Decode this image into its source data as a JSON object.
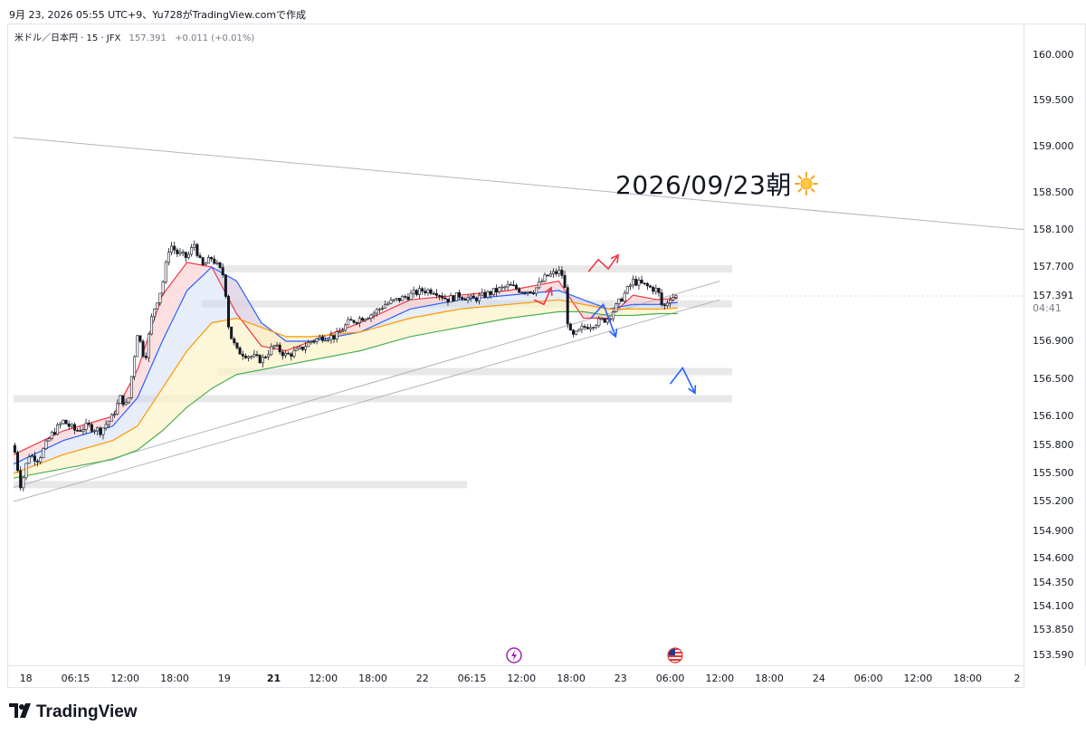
{
  "caption": "9月 23, 2026 05:55 UTC+9、Yu728がTradingView.comで作成",
  "legend": {
    "symbol": "米ドル／日本円 · 15 · JFX",
    "price": "157.391",
    "change": "+0.011 (+0.01%)"
  },
  "annotation": {
    "text": "2026/09/23朝",
    "icon": "sun-icon"
  },
  "last_price": {
    "value": "157.391",
    "countdown": "04:41"
  },
  "brand": {
    "name": "TradingView",
    "icon": "tradingview-logo-icon"
  },
  "events": [
    {
      "icon": "lightning-event-icon",
      "time_index": 20.2
    },
    {
      "icon": "us-flag-event-icon",
      "time_index": 26.7
    }
  ],
  "colors": {
    "bull": "#ffffff",
    "bear": "#131722",
    "red": "#f23645",
    "blue": "#2962ff",
    "green": "#4caf50",
    "orange": "#ff9800",
    "zone": "#e0e0e0"
  },
  "chart_data": {
    "type": "candlestick",
    "symbol": "米ドル／日本円 · 15 · JFX",
    "price_ticks": [
      "160.000",
      "159.500",
      "159.000",
      "158.500",
      "158.100",
      "157.700",
      "157.391",
      "156.900",
      "156.500",
      "156.100",
      "155.800",
      "155.500",
      "155.200",
      "154.900",
      "154.600",
      "154.350",
      "154.100",
      "153.850",
      "153.590"
    ],
    "price_tick_values": [
      160.0,
      159.5,
      159.0,
      158.5,
      158.1,
      157.7,
      157.391,
      156.9,
      156.5,
      156.1,
      155.8,
      155.5,
      155.2,
      154.9,
      154.6,
      154.35,
      154.1,
      153.85,
      153.59
    ],
    "time_ticks": [
      {
        "label": "18",
        "idx": 0.5
      },
      {
        "label": "06:15",
        "idx": 2.5
      },
      {
        "label": "12:00",
        "idx": 4.5
      },
      {
        "label": "18:00",
        "idx": 6.5
      },
      {
        "label": "19",
        "idx": 8.5
      },
      {
        "label": "21",
        "idx": 10.5,
        "bold": true
      },
      {
        "label": "12:00",
        "idx": 12.5
      },
      {
        "label": "18:00",
        "idx": 14.5
      },
      {
        "label": "22",
        "idx": 16.5
      },
      {
        "label": "06:15",
        "idx": 18.5
      },
      {
        "label": "12:00",
        "idx": 20.5
      },
      {
        "label": "18:00",
        "idx": 22.5
      },
      {
        "label": "23",
        "idx": 24.5
      },
      {
        "label": "06:00",
        "idx": 26.5
      },
      {
        "label": "12:00",
        "idx": 28.5
      },
      {
        "label": "18:00",
        "idx": 30.5
      },
      {
        "label": "24",
        "idx": 32.5
      },
      {
        "label": "06:00",
        "idx": 34.5
      },
      {
        "label": "12:00",
        "idx": 36.5
      },
      {
        "label": "18:00",
        "idx": 38.5
      },
      {
        "label": "2",
        "idx": 40.5
      }
    ],
    "close_path": [
      [
        0,
        155.8
      ],
      [
        0.3,
        155.35
      ],
      [
        0.6,
        155.7
      ],
      [
        1,
        155.65
      ],
      [
        1.5,
        155.9
      ],
      [
        2,
        156.05
      ],
      [
        2.5,
        155.95
      ],
      [
        3,
        156.0
      ],
      [
        3.5,
        155.95
      ],
      [
        4,
        156.1
      ],
      [
        4.3,
        156.3
      ],
      [
        4.6,
        156.2
      ],
      [
        5,
        157.0
      ],
      [
        5.3,
        156.7
      ],
      [
        5.6,
        157.2
      ],
      [
        6,
        157.5
      ],
      [
        6.3,
        157.95
      ],
      [
        6.6,
        157.85
      ],
      [
        7,
        157.8
      ],
      [
        7.3,
        157.95
      ],
      [
        7.6,
        157.7
      ],
      [
        8,
        157.8
      ],
      [
        8.5,
        157.6
      ],
      [
        8.7,
        157.0
      ],
      [
        9,
        156.8
      ],
      [
        9.5,
        156.75
      ],
      [
        10,
        156.7
      ],
      [
        10.5,
        156.85
      ],
      [
        11,
        156.75
      ],
      [
        11.5,
        156.8
      ],
      [
        12,
        156.9
      ],
      [
        12.5,
        156.95
      ],
      [
        13,
        156.95
      ],
      [
        13.5,
        157.1
      ],
      [
        14,
        157.15
      ],
      [
        14.5,
        157.2
      ],
      [
        15,
        157.3
      ],
      [
        15.5,
        157.35
      ],
      [
        16,
        157.4
      ],
      [
        16.5,
        157.45
      ],
      [
        17,
        157.45
      ],
      [
        17.5,
        157.35
      ],
      [
        18,
        157.4
      ],
      [
        18.5,
        157.35
      ],
      [
        19,
        157.4
      ],
      [
        19.5,
        157.45
      ],
      [
        20,
        157.5
      ],
      [
        20.5,
        157.45
      ],
      [
        21,
        157.45
      ],
      [
        21.5,
        157.6
      ],
      [
        22,
        157.65
      ],
      [
        22.2,
        157.6
      ],
      [
        22.4,
        157.0
      ],
      [
        22.6,
        156.95
      ],
      [
        23,
        157.05
      ],
      [
        23.5,
        157.1
      ],
      [
        24,
        157.15
      ],
      [
        24.5,
        157.35
      ],
      [
        25,
        157.55
      ],
      [
        25.5,
        157.5
      ],
      [
        26,
        157.45
      ],
      [
        26.2,
        157.25
      ],
      [
        26.5,
        157.38
      ],
      [
        26.8,
        157.39
      ]
    ],
    "series": [
      {
        "name": "",
        "color": "#f23645",
        "values": [
          [
            0,
            155.7
          ],
          [
            2,
            155.95
          ],
          [
            4,
            156.1
          ],
          [
            5,
            156.6
          ],
          [
            6,
            157.4
          ],
          [
            7,
            157.75
          ],
          [
            8,
            157.7
          ],
          [
            9,
            157.2
          ],
          [
            10,
            156.85
          ],
          [
            11,
            156.8
          ],
          [
            12,
            156.9
          ],
          [
            14,
            157.1
          ],
          [
            16,
            157.35
          ],
          [
            18,
            157.4
          ],
          [
            20,
            157.45
          ],
          [
            22,
            157.55
          ],
          [
            23,
            157.15
          ],
          [
            24,
            157.15
          ],
          [
            25,
            157.4
          ],
          [
            26,
            157.35
          ],
          [
            26.8,
            157.37
          ]
        ]
      },
      {
        "name": "",
        "color": "#2962ff",
        "values": [
          [
            0,
            155.6
          ],
          [
            2,
            155.85
          ],
          [
            4,
            156.0
          ],
          [
            5,
            156.3
          ],
          [
            6,
            156.9
          ],
          [
            7,
            157.45
          ],
          [
            8,
            157.7
          ],
          [
            9,
            157.55
          ],
          [
            10,
            157.1
          ],
          [
            11,
            156.9
          ],
          [
            12,
            156.9
          ],
          [
            14,
            157.0
          ],
          [
            16,
            157.25
          ],
          [
            18,
            157.35
          ],
          [
            20,
            157.4
          ],
          [
            22,
            157.45
          ],
          [
            23,
            157.35
          ],
          [
            24,
            157.25
          ],
          [
            25,
            157.3
          ],
          [
            26,
            157.3
          ],
          [
            26.8,
            157.32
          ]
        ]
      },
      {
        "name": "",
        "color": "#ff9800",
        "values": [
          [
            0,
            155.5
          ],
          [
            2,
            155.7
          ],
          [
            4,
            155.85
          ],
          [
            5,
            156.0
          ],
          [
            6,
            156.4
          ],
          [
            7,
            156.8
          ],
          [
            8,
            157.1
          ],
          [
            9,
            157.15
          ],
          [
            10,
            157.05
          ],
          [
            11,
            156.95
          ],
          [
            12,
            156.95
          ],
          [
            14,
            157.0
          ],
          [
            16,
            157.15
          ],
          [
            18,
            157.25
          ],
          [
            20,
            157.3
          ],
          [
            22,
            157.35
          ],
          [
            23,
            157.3
          ],
          [
            24,
            157.25
          ],
          [
            25,
            157.25
          ],
          [
            26,
            157.25
          ],
          [
            26.8,
            157.26
          ]
        ]
      },
      {
        "name": "",
        "color": "#4caf50",
        "values": [
          [
            0,
            155.45
          ],
          [
            2,
            155.55
          ],
          [
            4,
            155.65
          ],
          [
            5,
            155.75
          ],
          [
            6,
            155.95
          ],
          [
            7,
            156.2
          ],
          [
            8,
            156.4
          ],
          [
            9,
            156.55
          ],
          [
            10,
            156.6
          ],
          [
            11,
            156.65
          ],
          [
            12,
            156.7
          ],
          [
            14,
            156.8
          ],
          [
            16,
            156.95
          ],
          [
            18,
            157.05
          ],
          [
            20,
            157.15
          ],
          [
            22,
            157.22
          ],
          [
            23,
            157.22
          ],
          [
            24,
            157.18
          ],
          [
            25,
            157.18
          ],
          [
            26,
            157.2
          ],
          [
            26.8,
            157.2
          ]
        ]
      }
    ],
    "zones": [
      {
        "from": 8.2,
        "to": 29.0,
        "price": 157.68
      },
      {
        "from": 7.6,
        "to": 29.0,
        "price": 157.305
      },
      {
        "from": 8.2,
        "to": 29.0,
        "price": 156.58
      },
      {
        "from": 0,
        "to": 29.0,
        "price": 156.29
      },
      {
        "from": 0,
        "to": 18.3,
        "price": 155.38
      }
    ],
    "trendlines": [
      {
        "from": [
          0,
          159.1
        ],
        "to": [
          40.9,
          158.1
        ]
      },
      {
        "from": [
          0,
          155.35
        ],
        "to": [
          28.5,
          157.55
        ]
      },
      {
        "from": [
          0,
          155.2
        ],
        "to": [
          28.5,
          157.35
        ]
      }
    ],
    "projections": [
      {
        "color": "#f23645",
        "points": [
          [
            23.2,
            157.65
          ],
          [
            23.6,
            157.78
          ],
          [
            24.0,
            157.68
          ],
          [
            24.4,
            157.83
          ]
        ]
      },
      {
        "color": "#2962ff",
        "points": [
          [
            23.3,
            157.15
          ],
          [
            23.8,
            157.3
          ],
          [
            24.3,
            156.95
          ]
        ]
      },
      {
        "color": "#2962ff",
        "points": [
          [
            26.5,
            156.45
          ],
          [
            27.0,
            156.62
          ],
          [
            27.5,
            156.35
          ]
        ]
      },
      {
        "color": "#f23645",
        "points": [
          [
            21.0,
            157.35
          ],
          [
            21.4,
            157.3
          ],
          [
            21.7,
            157.48
          ]
        ]
      }
    ]
  }
}
